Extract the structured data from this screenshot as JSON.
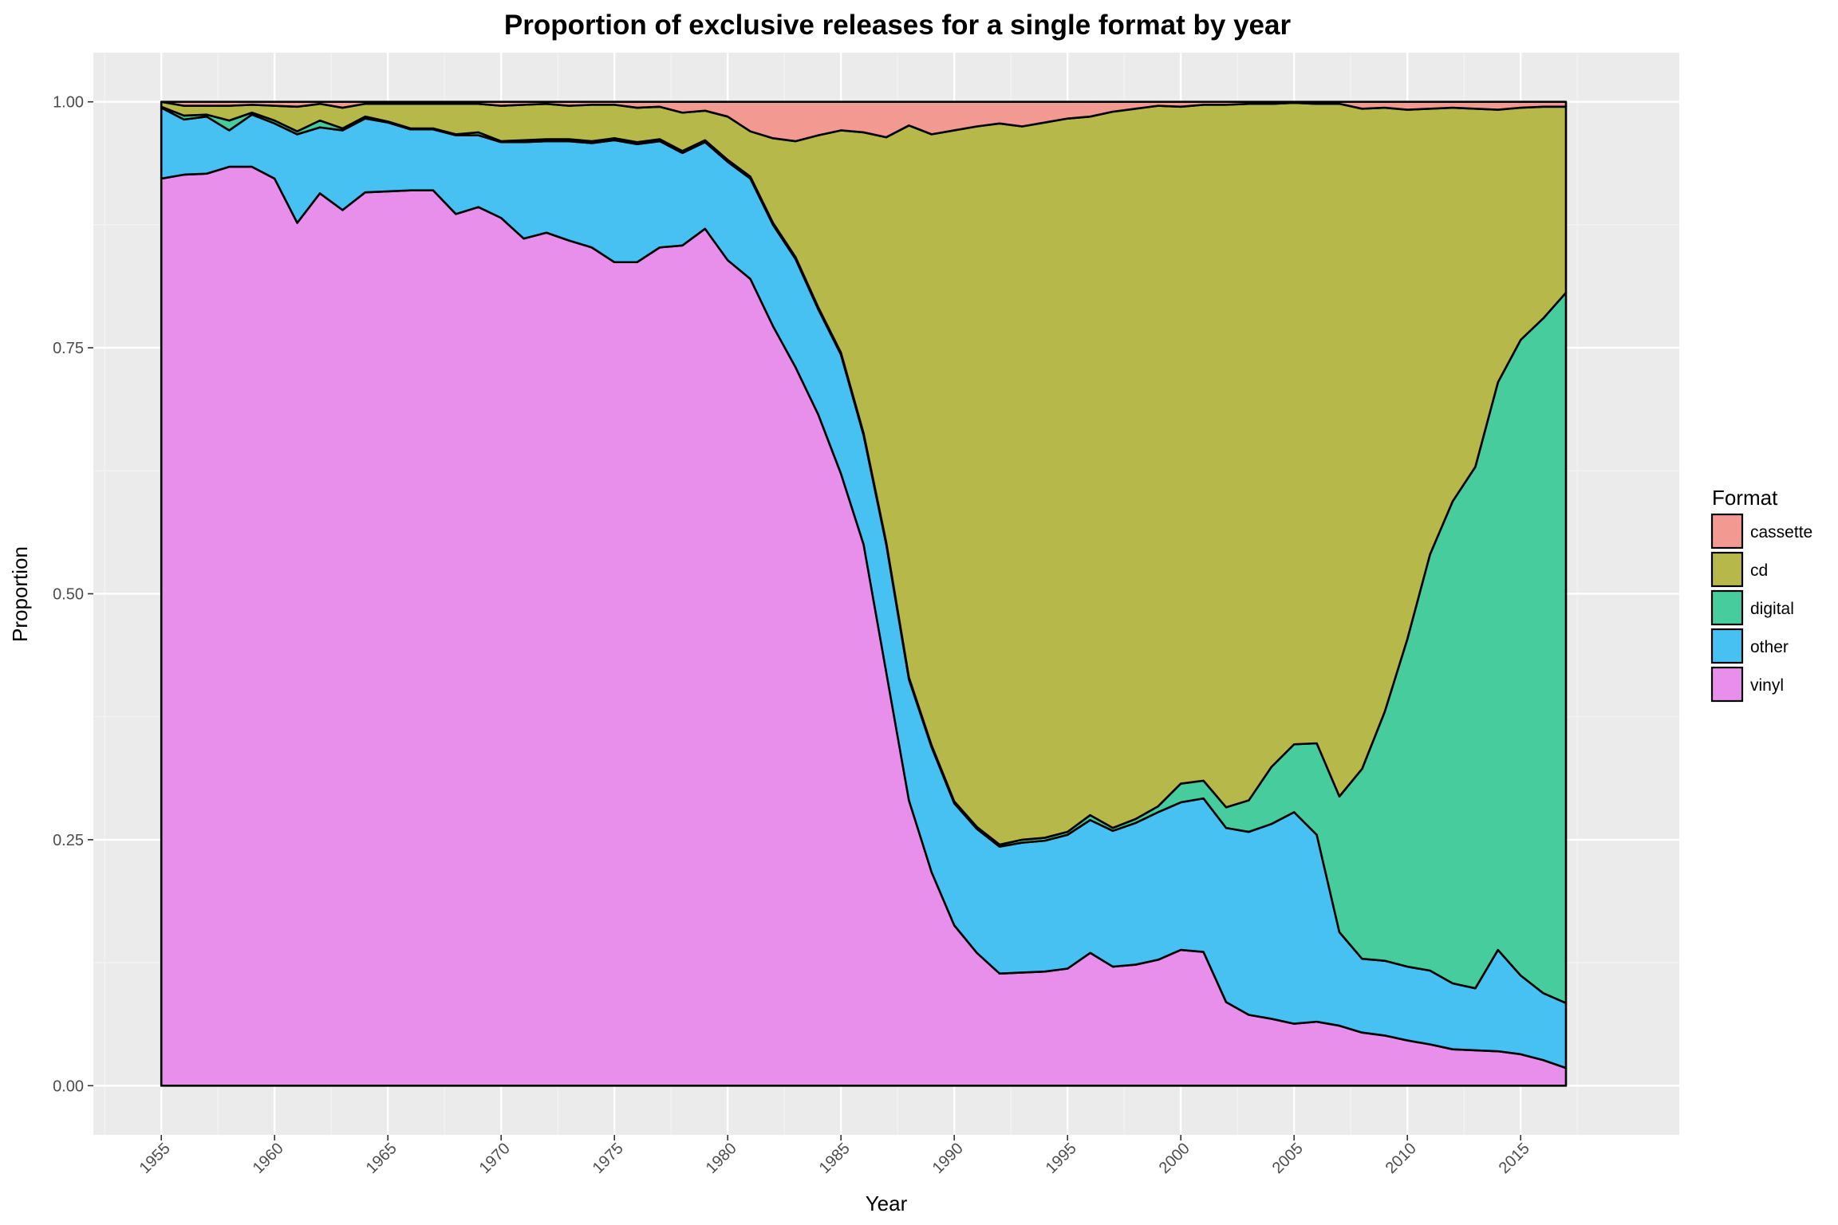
{
  "chart_data": {
    "type": "area",
    "stacked": true,
    "title": "Proportion of exclusive releases for a single format by year",
    "xlabel": "Year",
    "ylabel": "Proportion",
    "xlim": [
      1952,
      2022
    ],
    "ylim": [
      -0.05,
      1.05
    ],
    "x_ticks": [
      1955,
      1960,
      1965,
      1970,
      1975,
      1980,
      1985,
      1990,
      1995,
      2000,
      2005,
      2010,
      2015
    ],
    "y_ticks": [
      0.0,
      0.25,
      0.5,
      0.75,
      1.0
    ],
    "y_tick_labels": [
      "0.00",
      "0.25",
      "0.50",
      "0.75",
      "1.00"
    ],
    "grid": true,
    "legend": {
      "title": "Format",
      "position": "right"
    },
    "x": [
      1955,
      1956,
      1957,
      1958,
      1959,
      1960,
      1961,
      1962,
      1963,
      1964,
      1965,
      1966,
      1967,
      1968,
      1969,
      1970,
      1971,
      1972,
      1973,
      1974,
      1975,
      1976,
      1977,
      1978,
      1979,
      1980,
      1981,
      1982,
      1983,
      1984,
      1985,
      1986,
      1987,
      1988,
      1989,
      1990,
      1991,
      1992,
      1993,
      1994,
      1995,
      1996,
      1997,
      1998,
      1999,
      2000,
      2001,
      2002,
      2003,
      2004,
      2005,
      2006,
      2007,
      2008,
      2009,
      2010,
      2011,
      2012,
      2013,
      2014,
      2015,
      2016,
      2017
    ],
    "series": [
      {
        "name": "vinyl",
        "color": "#E88FEC",
        "values": [
          0.922,
          0.926,
          0.927,
          0.934,
          0.934,
          0.922,
          0.877,
          0.907,
          0.89,
          0.908,
          0.909,
          0.91,
          0.91,
          0.886,
          0.893,
          0.882,
          0.861,
          0.867,
          0.859,
          0.852,
          0.837,
          0.837,
          0.852,
          0.854,
          0.871,
          0.839,
          0.82,
          0.772,
          0.73,
          0.682,
          0.622,
          0.55,
          0.42,
          0.29,
          0.217,
          0.163,
          0.135,
          0.114,
          0.115,
          0.116,
          0.119,
          0.135,
          0.121,
          0.123,
          0.128,
          0.138,
          0.136,
          0.085,
          0.072,
          0.068,
          0.063,
          0.065,
          0.061,
          0.054,
          0.051,
          0.046,
          0.042,
          0.037,
          0.036,
          0.035,
          0.032,
          0.026,
          0.018
        ]
      },
      {
        "name": "other",
        "color": "#47C1F2",
        "values": [
          0.072,
          0.056,
          0.058,
          0.037,
          0.053,
          0.056,
          0.09,
          0.067,
          0.081,
          0.075,
          0.07,
          0.062,
          0.062,
          0.08,
          0.073,
          0.077,
          0.098,
          0.093,
          0.101,
          0.106,
          0.124,
          0.12,
          0.108,
          0.094,
          0.088,
          0.1,
          0.102,
          0.103,
          0.11,
          0.107,
          0.121,
          0.111,
          0.13,
          0.123,
          0.127,
          0.124,
          0.126,
          0.129,
          0.132,
          0.133,
          0.136,
          0.135,
          0.138,
          0.144,
          0.15,
          0.15,
          0.156,
          0.177,
          0.186,
          0.198,
          0.215,
          0.19,
          0.095,
          0.075,
          0.076,
          0.075,
          0.075,
          0.067,
          0.063,
          0.103,
          0.08,
          0.068,
          0.066
        ]
      },
      {
        "name": "digital",
        "color": "#46CC9D",
        "values": [
          0.001,
          0.004,
          0.002,
          0.01,
          0.002,
          0.003,
          0.003,
          0.007,
          0.002,
          0.002,
          0.001,
          0.001,
          0.001,
          0.001,
          0.003,
          0.001,
          0.002,
          0.002,
          0.002,
          0.002,
          0.002,
          0.002,
          0.002,
          0.002,
          0.002,
          0.002,
          0.002,
          0.002,
          0.002,
          0.002,
          0.002,
          0.002,
          0.002,
          0.002,
          0.002,
          0.002,
          0.002,
          0.002,
          0.003,
          0.003,
          0.003,
          0.005,
          0.003,
          0.004,
          0.006,
          0.019,
          0.018,
          0.021,
          0.032,
          0.058,
          0.069,
          0.093,
          0.138,
          0.193,
          0.253,
          0.333,
          0.423,
          0.49,
          0.53,
          0.577,
          0.646,
          0.686,
          0.722
        ]
      },
      {
        "name": "cd",
        "color": "#B6B84A",
        "values": [
          0.005,
          0.01,
          0.009,
          0.015,
          0.008,
          0.015,
          0.025,
          0.017,
          0.021,
          0.013,
          0.018,
          0.025,
          0.025,
          0.031,
          0.029,
          0.036,
          0.036,
          0.036,
          0.034,
          0.037,
          0.034,
          0.035,
          0.033,
          0.039,
          0.03,
          0.044,
          0.046,
          0.086,
          0.118,
          0.175,
          0.226,
          0.306,
          0.412,
          0.561,
          0.621,
          0.682,
          0.712,
          0.733,
          0.725,
          0.727,
          0.725,
          0.71,
          0.728,
          0.722,
          0.712,
          0.688,
          0.687,
          0.714,
          0.708,
          0.674,
          0.652,
          0.65,
          0.704,
          0.671,
          0.614,
          0.538,
          0.453,
          0.4,
          0.364,
          0.277,
          0.236,
          0.215,
          0.189
        ]
      },
      {
        "name": "cassette",
        "color": "#F29A92",
        "values": [
          0.0,
          0.004,
          0.004,
          0.004,
          0.003,
          0.004,
          0.005,
          0.002,
          0.006,
          0.002,
          0.002,
          0.002,
          0.002,
          0.002,
          0.002,
          0.004,
          0.003,
          0.002,
          0.004,
          0.003,
          0.003,
          0.006,
          0.005,
          0.011,
          0.009,
          0.015,
          0.03,
          0.037,
          0.04,
          0.034,
          0.029,
          0.031,
          0.036,
          0.024,
          0.033,
          0.029,
          0.025,
          0.022,
          0.025,
          0.021,
          0.017,
          0.015,
          0.01,
          0.007,
          0.004,
          0.005,
          0.003,
          0.003,
          0.002,
          0.002,
          0.001,
          0.002,
          0.002,
          0.007,
          0.006,
          0.008,
          0.007,
          0.006,
          0.007,
          0.008,
          0.006,
          0.005,
          0.005
        ]
      }
    ]
  }
}
